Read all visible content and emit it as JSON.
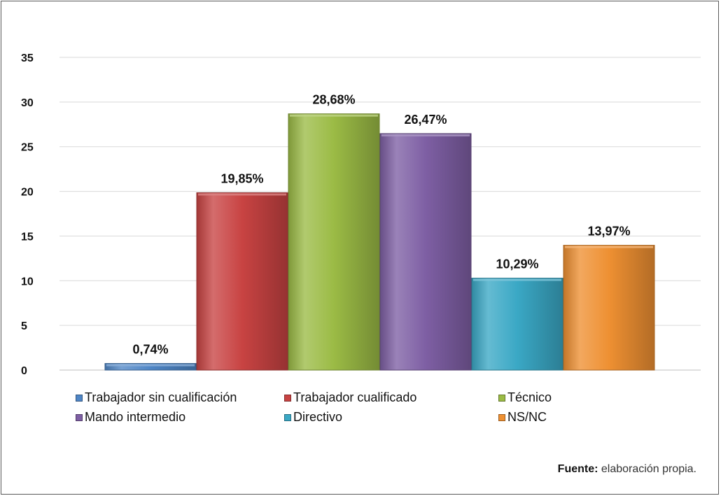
{
  "chart_data": {
    "type": "bar",
    "categories": [
      "Trabajador sin cualificación",
      "Trabajador cualificado",
      "Técnico",
      "Mando intermedio",
      "Directivo",
      "NS/NC"
    ],
    "values": [
      0.74,
      19.85,
      28.68,
      26.47,
      10.29,
      13.97
    ],
    "value_labels": [
      "0,74%",
      "19,85%",
      "28,68%",
      "26,47%",
      "10,29%",
      "13,97%"
    ],
    "colors": [
      "#4f86c6",
      "#c84342",
      "#9bbb45",
      "#7e5fa4",
      "#3aa8c5",
      "#ee9032"
    ],
    "ylim": [
      0,
      35
    ],
    "yticks": [
      0,
      5,
      10,
      15,
      20,
      25,
      30,
      35
    ],
    "ytick_labels": [
      "0",
      "5",
      "10",
      "15",
      "20",
      "25",
      "30",
      "35"
    ],
    "grid": true,
    "legend_position": "bottom"
  },
  "legend": {
    "items": [
      {
        "label": "Trabajador sin cualificación",
        "color": "#4f86c6"
      },
      {
        "label": "Trabajador cualificado",
        "color": "#c84342"
      },
      {
        "label": "Técnico",
        "color": "#9bbb45"
      },
      {
        "label": "Mando intermedio",
        "color": "#7e5fa4"
      },
      {
        "label": "Directivo",
        "color": "#3aa8c5"
      },
      {
        "label": "NS/NC",
        "color": "#ee9032"
      }
    ]
  },
  "source": {
    "label": "Fuente:",
    "text": "elaboración propia."
  }
}
